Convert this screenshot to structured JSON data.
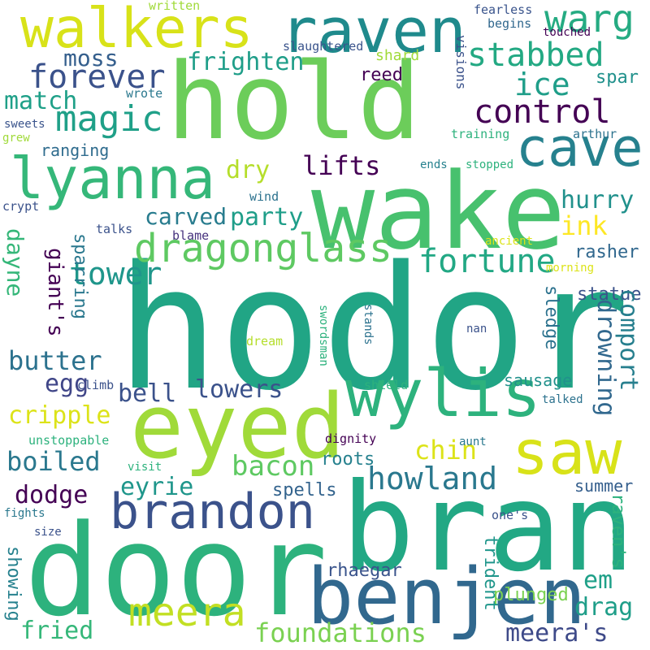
{
  "words": {
    "hodor": "hodor",
    "door": "door",
    "bran": "bran",
    "wake": "wake",
    "hold": "hold",
    "eyed": "eyed",
    "wylis": "wylis",
    "benjen": "benjen",
    "brandon": "brandon",
    "raven": "raven",
    "walkers": "walkers",
    "saw": "saw",
    "cave": "cave",
    "lyanna": "lyanna",
    "warg": "warg",
    "meera": "meera",
    "dragonglass": "dragonglass",
    "stabbed": "stabbed",
    "control": "control",
    "ice": "ice",
    "magic": "magic",
    "forever": "forever",
    "frighten": "frighten",
    "fortune": "fortune",
    "foundations": "foundations",
    "howland": "howland",
    "bacon": "bacon",
    "tower": "tower",
    "party": "party",
    "carved": "carved",
    "match": "match",
    "moss": "moss",
    "lifts": "lifts",
    "dry": "dry",
    "hurry": "hurry",
    "ink": "ink",
    "cripple": "cripple",
    "boiled": "boiled",
    "butter": "butter",
    "egg": "egg",
    "bell": "bell",
    "lowers": "lowers",
    "eyrie": "eyrie",
    "chin": "chin",
    "dodge": "dodge",
    "drowning": "drowning",
    "comport": "comport",
    "sausage": "sausage",
    "meeras": "meera's",
    "em": "em",
    "drag": "drag",
    "fried": "fried",
    "roots": "roots",
    "spells": "spells",
    "rhaegar": "rhaegar",
    "plunged": "plunged",
    "giants": "giant's",
    "dayne": "dayne",
    "ranging": "ranging",
    "reed": "reed",
    "shard": "shard",
    "spar": "spar",
    "rasher": "rasher",
    "statue": "statue",
    "sledge": "sledge",
    "summer": "summer",
    "ravens": "raven's",
    "trident": "trident",
    "showing": "showing",
    "sparring": "sparring",
    "written": "written",
    "fearless": "fearless",
    "touched": "touched",
    "begins": "begins",
    "slaughtered": "slaughtered",
    "visions": "visions",
    "wrote": "wrote",
    "sweets": "sweets",
    "grew": "grew",
    "training": "training",
    "arthur": "arthur",
    "ends": "ends",
    "stopped": "stopped",
    "wind": "wind",
    "crypt": "crypt",
    "talks": "talks",
    "blame": "blame",
    "ancient": "ancient",
    "morning": "morning",
    "swordsman": "swordsman",
    "stands": "stands",
    "dream": "dream",
    "nan": "nan",
    "climb": "climb",
    "shield": "shield",
    "talked": "talked",
    "unstoppable": "unstoppable",
    "dignity": "dignity",
    "aunt": "aunt",
    "visit": "visit",
    "fights": "fights",
    "size": "size",
    "ones": "one's"
  },
  "colors": {
    "background": "#ffffff",
    "palette": [
      "#440154",
      "#46327e",
      "#365c8d",
      "#277f8e",
      "#1fa187",
      "#4ac16d",
      "#a0da39",
      "#fde725"
    ]
  }
}
